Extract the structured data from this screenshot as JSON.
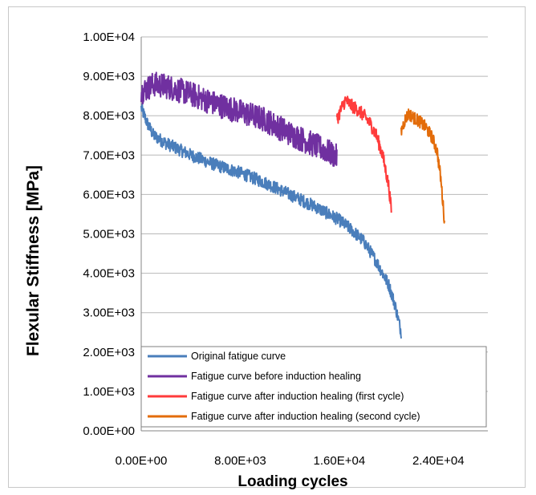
{
  "chart_data": {
    "type": "line",
    "xlabel": "Loading cycles",
    "ylabel": "Flexular Stiffness [MPa]",
    "xlim": [
      0,
      28000
    ],
    "ylim": [
      0,
      10000
    ],
    "x_ticks": [
      {
        "value": 0,
        "label": "0.00E+00"
      },
      {
        "value": 8000,
        "label": "8.00E+03"
      },
      {
        "value": 16000,
        "label": "1.60E+04"
      },
      {
        "value": 24000,
        "label": "2.40E+04"
      }
    ],
    "y_ticks": [
      {
        "value": 0,
        "label": "0.00E+00"
      },
      {
        "value": 1000,
        "label": "1.00E+03"
      },
      {
        "value": 2000,
        "label": "2.00E+03"
      },
      {
        "value": 3000,
        "label": "3.00E+03"
      },
      {
        "value": 4000,
        "label": "4.00E+03"
      },
      {
        "value": 5000,
        "label": "5.00E+03"
      },
      {
        "value": 6000,
        "label": "6.00E+03"
      },
      {
        "value": 7000,
        "label": "7.00E+03"
      },
      {
        "value": 8000,
        "label": "8.00E+03"
      },
      {
        "value": 9000,
        "label": "9.00E+03"
      },
      {
        "value": 10000,
        "label": "1.00E+04"
      }
    ],
    "grid": "horizontal",
    "legend_position": "bottom",
    "series": [
      {
        "name": "Original fatigue curve",
        "color": "#4a7ebb",
        "noise": 160,
        "x": [
          0,
          500,
          1000,
          2000,
          4000,
          6000,
          8000,
          10000,
          12000,
          14000,
          16000,
          17000,
          18000,
          19000,
          20000,
          20500,
          21000
        ],
        "y": [
          8200,
          7800,
          7500,
          7300,
          7000,
          6750,
          6550,
          6300,
          6000,
          5700,
          5350,
          5100,
          4800,
          4300,
          3700,
          3200,
          2500
        ]
      },
      {
        "name": "Fatigue curve before induction healing",
        "color": "#7030a0",
        "noise": 320,
        "x": [
          0,
          1000,
          2000,
          4000,
          6000,
          8000,
          10000,
          12000,
          14000,
          15000,
          15800
        ],
        "y": [
          8600,
          8800,
          8750,
          8550,
          8300,
          8100,
          7900,
          7550,
          7250,
          7100,
          6950
        ]
      },
      {
        "name": "Fatigue curve after induction healing (first cycle)",
        "color": "#ff3b3b",
        "noise": 170,
        "x": [
          15800,
          16200,
          16500,
          17000,
          17500,
          18000,
          18500,
          19000,
          19500,
          20000,
          20200
        ],
        "y": [
          7900,
          8200,
          8400,
          8250,
          8150,
          8000,
          7800,
          7500,
          7000,
          6200,
          5600
        ]
      },
      {
        "name": "Fatigue curve after induction healing (second cycle)",
        "color": "#e36c0a",
        "noise": 160,
        "x": [
          21000,
          21300,
          21600,
          22000,
          22500,
          23000,
          23500,
          23900,
          24200,
          24500
        ],
        "y": [
          7600,
          7900,
          8050,
          7950,
          7850,
          7700,
          7450,
          7100,
          6400,
          5300
        ]
      }
    ]
  }
}
